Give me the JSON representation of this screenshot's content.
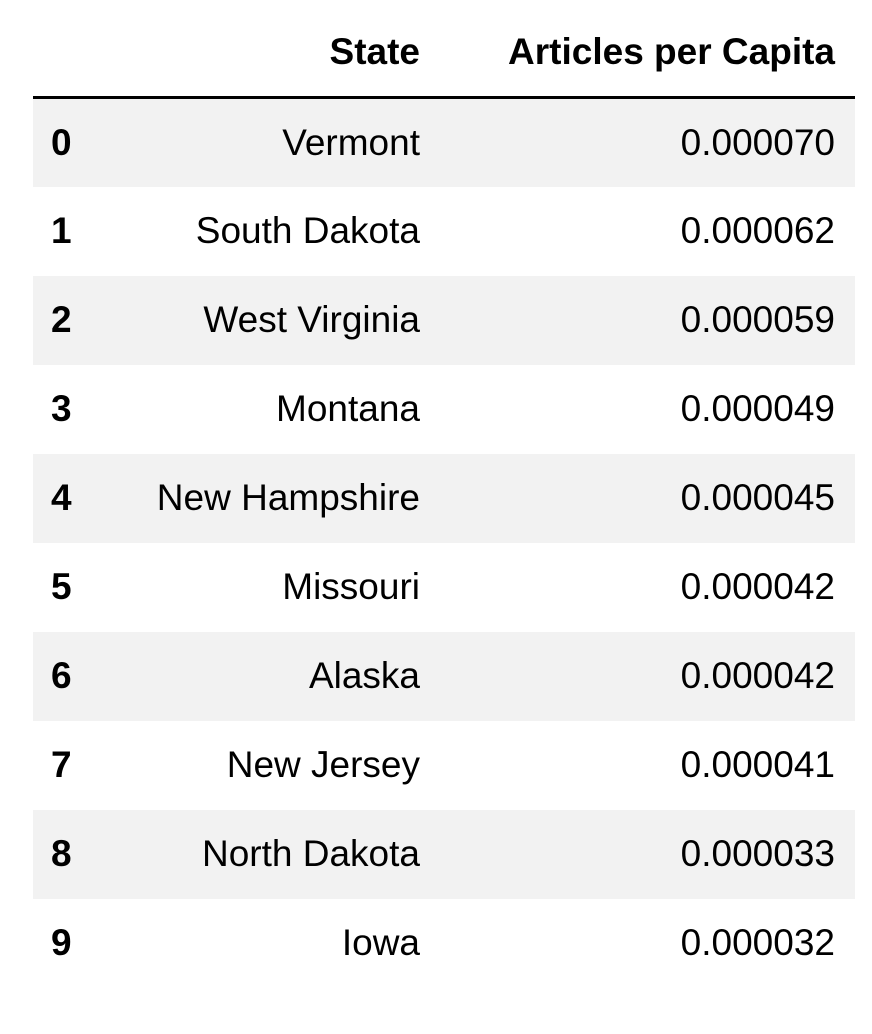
{
  "table": {
    "index_header": "",
    "columns": [
      "State",
      "Articles per Capita"
    ],
    "rows": [
      {
        "index": "0",
        "state": "Vermont",
        "articles_per_capita": "0.000070"
      },
      {
        "index": "1",
        "state": "South Dakota",
        "articles_per_capita": "0.000062"
      },
      {
        "index": "2",
        "state": "West Virginia",
        "articles_per_capita": "0.000059"
      },
      {
        "index": "3",
        "state": "Montana",
        "articles_per_capita": "0.000049"
      },
      {
        "index": "4",
        "state": "New Hampshire",
        "articles_per_capita": "0.000045"
      },
      {
        "index": "5",
        "state": "Missouri",
        "articles_per_capita": "0.000042"
      },
      {
        "index": "6",
        "state": "Alaska",
        "articles_per_capita": "0.000042"
      },
      {
        "index": "7",
        "state": "New Jersey",
        "articles_per_capita": "0.000041"
      },
      {
        "index": "8",
        "state": "North Dakota",
        "articles_per_capita": "0.000033"
      },
      {
        "index": "9",
        "state": "Iowa",
        "articles_per_capita": "0.000032"
      }
    ]
  },
  "colors": {
    "stripe_background": "#f2f2f2",
    "header_rule": "#000000",
    "text": "#000000"
  }
}
